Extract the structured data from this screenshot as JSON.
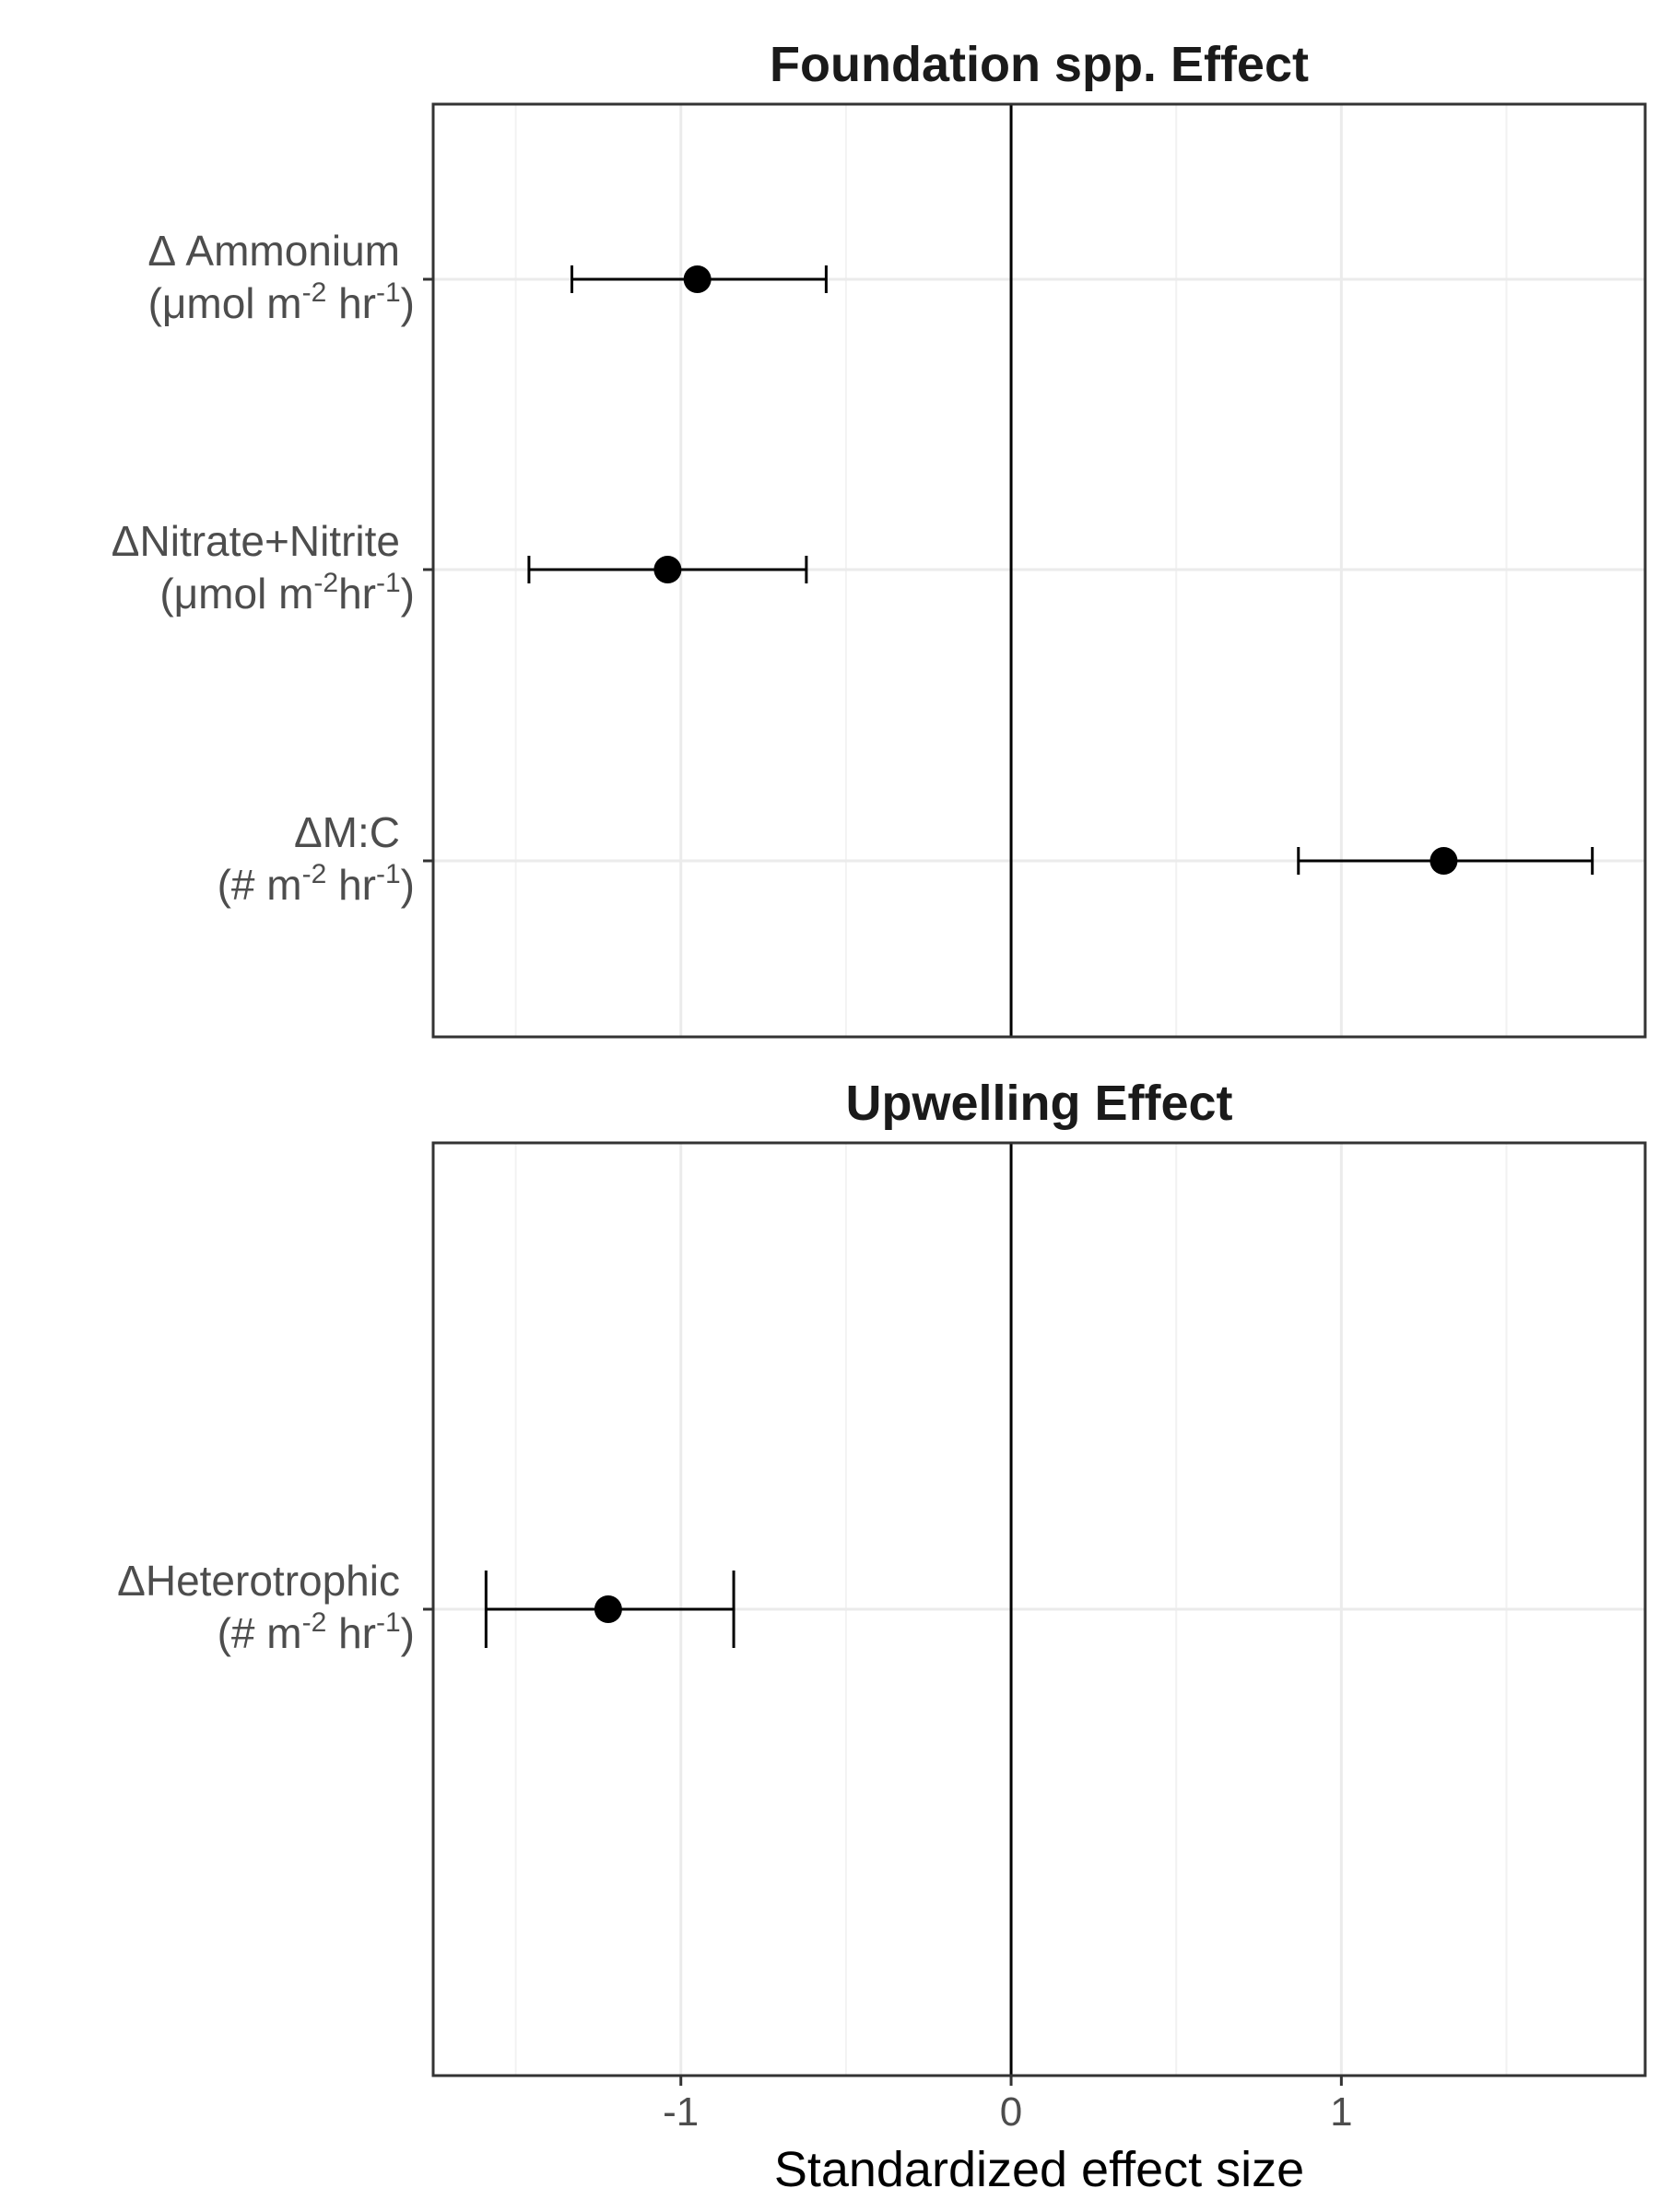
{
  "chart_data": {
    "type": "forest",
    "xlabel": "Standardized effect size",
    "xlim": [
      -1.75,
      1.92
    ],
    "x_ticks": [
      -1,
      0,
      1
    ],
    "x_tick_labels": [
      "-1",
      "0",
      "1"
    ],
    "reference_line": 0,
    "grid": true,
    "panels": [
      {
        "title": "Foundation spp. Effect",
        "rows": [
          {
            "label_line1": "Δ Ammonium",
            "label_line2_parts": [
              "(μmol m",
              "-2",
              " hr",
              "-1",
              ")"
            ],
            "estimate": -0.95,
            "lower": -1.33,
            "upper": -0.56
          },
          {
            "label_line1": "ΔNitrate+Nitrite",
            "label_line2_parts": [
              "(μmol m",
              "-2",
              "hr",
              "-1",
              ")"
            ],
            "estimate": -1.04,
            "lower": -1.46,
            "upper": -0.62
          },
          {
            "label_line1": "ΔM:C",
            "label_line2_parts": [
              "(# m",
              "-2",
              " hr",
              "-1",
              ")"
            ],
            "estimate": 1.31,
            "lower": 0.87,
            "upper": 1.76
          }
        ]
      },
      {
        "title": "Upwelling Effect",
        "rows": [
          {
            "label_line1": "ΔHeterotrophic",
            "label_line2_parts": [
              "(# m",
              "-2",
              " hr",
              "-1",
              ")"
            ],
            "estimate": -1.22,
            "lower": -1.59,
            "upper": -0.84
          }
        ]
      }
    ]
  },
  "colors": {
    "panel_border": "#333333",
    "grid_major": "#ebebeb",
    "grid_minor": "#f2f2f2",
    "reference_line": "#000000",
    "point": "#000000",
    "label_text": "#4d4d4d",
    "title_text": "#1a1a1a"
  }
}
